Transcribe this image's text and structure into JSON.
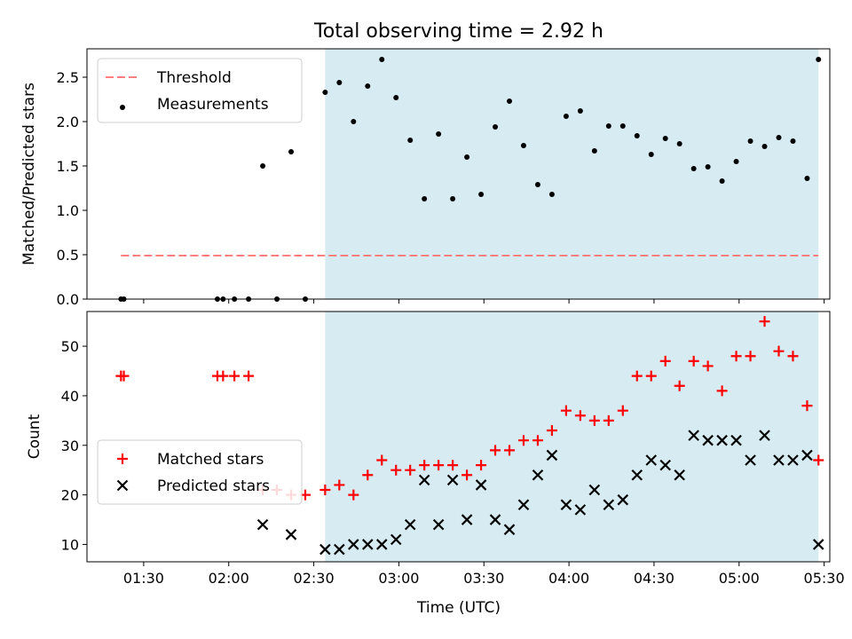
{
  "chart_data": {
    "title": "Total observing time = 2.92 h",
    "xlabel": "Time (UTC)",
    "x_ticks": [
      "01:30",
      "02:00",
      "02:30",
      "03:00",
      "03:30",
      "04:00",
      "04:30",
      "05:00",
      "05:30"
    ],
    "x_range": [
      "01:10",
      "05:32"
    ],
    "shaded_region": {
      "start": "02:34",
      "end": "05:28",
      "color": "#add8e6"
    },
    "panels": [
      {
        "type": "scatter",
        "ylabel": "Matched/Predicted stars",
        "ylim": [
          0,
          2.82
        ],
        "y_ticks": [
          "0.0",
          "0.5",
          "1.0",
          "1.5",
          "2.0",
          "2.5"
        ],
        "legend_position": "upper left",
        "threshold": {
          "name": "Threshold",
          "value": 0.49,
          "from": "01:22",
          "to": "05:28",
          "color": "#ff7f7f"
        },
        "series": [
          {
            "name": "Measurements",
            "color": "#000000",
            "marker": "dot",
            "points": [
              [
                "01:22",
                0
              ],
              [
                "01:23",
                0
              ],
              [
                "01:56",
                0
              ],
              [
                "01:58",
                0
              ],
              [
                "02:02",
                0
              ],
              [
                "02:07",
                0
              ],
              [
                "02:12",
                1.5
              ],
              [
                "02:17",
                0
              ],
              [
                "02:22",
                1.66
              ],
              [
                "02:27",
                0
              ],
              [
                "02:34",
                2.33
              ],
              [
                "02:39",
                2.44
              ],
              [
                "02:44",
                2.0
              ],
              [
                "02:49",
                2.4
              ],
              [
                "02:54",
                2.7
              ],
              [
                "02:59",
                2.27
              ],
              [
                "03:04",
                1.79
              ],
              [
                "03:09",
                1.13
              ],
              [
                "03:14",
                1.86
              ],
              [
                "03:19",
                1.13
              ],
              [
                "03:24",
                1.6
              ],
              [
                "03:29",
                1.18
              ],
              [
                "03:34",
                1.94
              ],
              [
                "03:39",
                2.23
              ],
              [
                "03:44",
                1.73
              ],
              [
                "03:49",
                1.29
              ],
              [
                "03:54",
                1.18
              ],
              [
                "03:59",
                2.06
              ],
              [
                "04:04",
                2.12
              ],
              [
                "04:09",
                1.67
              ],
              [
                "04:14",
                1.95
              ],
              [
                "04:19",
                1.95
              ],
              [
                "04:24",
                1.84
              ],
              [
                "04:29",
                1.63
              ],
              [
                "04:34",
                1.81
              ],
              [
                "04:39",
                1.75
              ],
              [
                "04:44",
                1.47
              ],
              [
                "04:49",
                1.49
              ],
              [
                "04:54",
                1.33
              ],
              [
                "04:59",
                1.55
              ],
              [
                "05:04",
                1.78
              ],
              [
                "05:09",
                1.72
              ],
              [
                "05:14",
                1.82
              ],
              [
                "05:19",
                1.78
              ],
              [
                "05:24",
                1.36
              ],
              [
                "05:28",
                2.7
              ]
            ]
          }
        ]
      },
      {
        "type": "scatter",
        "ylabel": "Count",
        "ylim": [
          6.5,
          57
        ],
        "y_ticks": [
          "10",
          "20",
          "30",
          "40",
          "50"
        ],
        "legend_position": "center left",
        "series": [
          {
            "name": "Matched stars",
            "color": "#ff0000",
            "marker": "plus",
            "points": [
              [
                "01:22",
                44
              ],
              [
                "01:23",
                44
              ],
              [
                "01:56",
                44
              ],
              [
                "01:58",
                44
              ],
              [
                "02:02",
                44
              ],
              [
                "02:07",
                44
              ],
              [
                "02:12",
                21
              ],
              [
                "02:17",
                21
              ],
              [
                "02:22",
                20
              ],
              [
                "02:27",
                20
              ],
              [
                "02:34",
                21
              ],
              [
                "02:39",
                22
              ],
              [
                "02:44",
                20
              ],
              [
                "02:49",
                24
              ],
              [
                "02:54",
                27
              ],
              [
                "02:59",
                25
              ],
              [
                "03:04",
                25
              ],
              [
                "03:09",
                26
              ],
              [
                "03:14",
                26
              ],
              [
                "03:19",
                26
              ],
              [
                "03:24",
                24
              ],
              [
                "03:29",
                26
              ],
              [
                "03:34",
                29
              ],
              [
                "03:39",
                29
              ],
              [
                "03:44",
                31
              ],
              [
                "03:49",
                31
              ],
              [
                "03:54",
                33
              ],
              [
                "03:59",
                37
              ],
              [
                "04:04",
                36
              ],
              [
                "04:09",
                35
              ],
              [
                "04:14",
                35
              ],
              [
                "04:19",
                37
              ],
              [
                "04:24",
                44
              ],
              [
                "04:29",
                44
              ],
              [
                "04:34",
                47
              ],
              [
                "04:39",
                42
              ],
              [
                "04:44",
                47
              ],
              [
                "04:49",
                46
              ],
              [
                "04:54",
                41
              ],
              [
                "04:59",
                48
              ],
              [
                "05:04",
                48
              ],
              [
                "05:09",
                55
              ],
              [
                "05:14",
                49
              ],
              [
                "05:19",
                48
              ],
              [
                "05:24",
                38
              ],
              [
                "05:28",
                27
              ]
            ]
          },
          {
            "name": "Predicted stars",
            "color": "#000000",
            "marker": "cross",
            "points": [
              [
                "02:12",
                14
              ],
              [
                "02:22",
                12
              ],
              [
                "02:34",
                9
              ],
              [
                "02:39",
                9
              ],
              [
                "02:44",
                10
              ],
              [
                "02:49",
                10
              ],
              [
                "02:54",
                10
              ],
              [
                "02:59",
                11
              ],
              [
                "03:04",
                14
              ],
              [
                "03:09",
                23
              ],
              [
                "03:14",
                14
              ],
              [
                "03:19",
                23
              ],
              [
                "03:24",
                15
              ],
              [
                "03:29",
                22
              ],
              [
                "03:34",
                15
              ],
              [
                "03:39",
                13
              ],
              [
                "03:44",
                18
              ],
              [
                "03:49",
                24
              ],
              [
                "03:54",
                28
              ],
              [
                "03:59",
                18
              ],
              [
                "04:04",
                17
              ],
              [
                "04:09",
                21
              ],
              [
                "04:14",
                18
              ],
              [
                "04:19",
                19
              ],
              [
                "04:24",
                24
              ],
              [
                "04:29",
                27
              ],
              [
                "04:34",
                26
              ],
              [
                "04:39",
                24
              ],
              [
                "04:44",
                32
              ],
              [
                "04:49",
                31
              ],
              [
                "04:54",
                31
              ],
              [
                "04:59",
                31
              ],
              [
                "05:04",
                27
              ],
              [
                "05:09",
                32
              ],
              [
                "05:14",
                27
              ],
              [
                "05:19",
                27
              ],
              [
                "05:24",
                28
              ],
              [
                "05:28",
                10
              ]
            ]
          }
        ]
      }
    ]
  }
}
